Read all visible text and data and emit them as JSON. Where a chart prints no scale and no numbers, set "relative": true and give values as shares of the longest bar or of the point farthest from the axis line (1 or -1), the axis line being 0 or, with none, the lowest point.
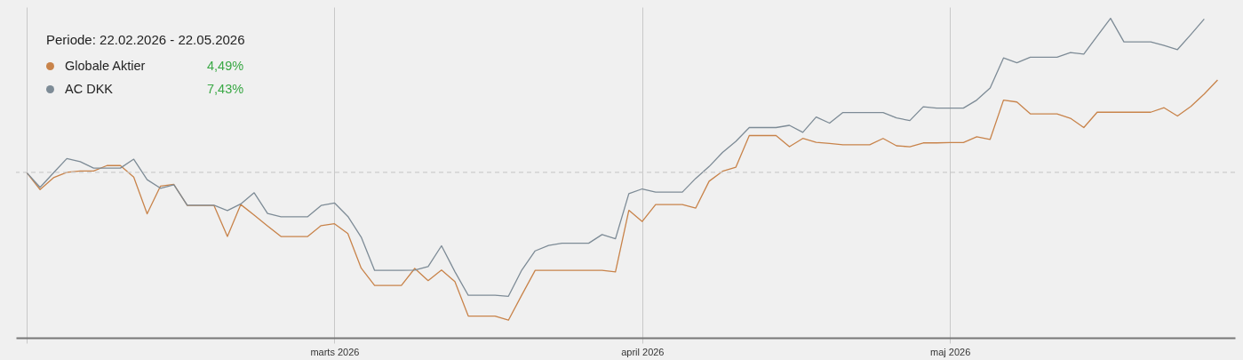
{
  "chart_data": {
    "type": "line",
    "relative": true,
    "legend_title": "Periode: 22.02.2026 - 22.05.2026",
    "legend": "top left",
    "grid": "x",
    "line_style": "solid",
    "marker": "none",
    "categories": [
      null,
      null,
      null,
      null,
      null,
      null,
      null,
      null,
      null,
      null,
      null,
      null,
      null,
      null,
      null,
      null,
      null,
      null,
      null,
      null,
      null,
      null,
      null,
      "marts 2026",
      null,
      null,
      null,
      null,
      null,
      null,
      null,
      null,
      null,
      null,
      null,
      null,
      null,
      null,
      null,
      null,
      null,
      null,
      null,
      null,
      null,
      null,
      "april 2026",
      null,
      null,
      null,
      null,
      null,
      null,
      null,
      null,
      null,
      null,
      null,
      null,
      null,
      null,
      null,
      null,
      null,
      null,
      null,
      null,
      null,
      null,
      "maj 2026",
      null,
      null,
      null,
      null,
      null,
      null,
      null,
      null,
      null,
      null,
      null,
      null,
      null,
      null,
      null,
      null,
      null,
      null,
      null,
      null
    ],
    "annotations": [
      "4,49%",
      "7,43%"
    ],
    "ref_lines": [
      {
        "axis": "y",
        "value": 0.518,
        "label": null,
        "color": "#cccccc",
        "line_style": "dashed"
      }
    ],
    "series": [
      {
        "name": "Globale Aktier",
        "color": "#c8834a",
        "values": [
          0.517,
          0.464,
          0.501,
          0.518,
          0.522,
          0.522,
          0.539,
          0.539,
          0.503,
          0.388,
          0.475,
          0.48,
          0.414,
          0.414,
          0.414,
          0.317,
          0.417,
          0.384,
          0.35,
          0.317,
          0.317,
          0.317,
          0.351,
          0.357,
          0.326,
          0.218,
          0.164,
          0.164,
          0.164,
          0.217,
          0.179,
          0.212,
          0.176,
          0.068,
          0.068,
          0.068,
          0.055,
          0.134,
          0.211,
          0.211,
          0.211,
          0.211,
          0.211,
          0.211,
          0.206,
          0.399,
          0.364,
          0.417,
          0.417,
          0.417,
          0.406,
          0.49,
          0.521,
          0.534,
          0.633,
          0.633,
          0.633,
          0.598,
          0.624,
          0.612,
          0.608,
          0.604,
          0.604,
          0.604,
          0.624,
          0.601,
          0.598,
          0.61,
          0.61,
          0.611,
          0.611,
          0.629,
          0.621,
          0.744,
          0.738,
          0.701,
          0.701,
          0.701,
          0.687,
          0.658,
          0.706,
          0.706,
          0.706,
          0.706,
          0.706,
          0.72,
          0.694,
          0.724,
          0.763,
          0.807
        ]
      },
      {
        "name": "AC DKK",
        "color": "#7d8b96",
        "values": [
          0.517,
          0.471,
          0.516,
          0.561,
          0.551,
          0.531,
          0.531,
          0.531,
          0.559,
          0.495,
          0.468,
          0.479,
          0.415,
          0.415,
          0.415,
          0.398,
          0.419,
          0.454,
          0.389,
          0.379,
          0.379,
          0.379,
          0.414,
          0.422,
          0.38,
          0.315,
          0.211,
          0.211,
          0.211,
          0.212,
          0.223,
          0.288,
          0.207,
          0.133,
          0.133,
          0.133,
          0.13,
          0.212,
          0.272,
          0.289,
          0.296,
          0.296,
          0.296,
          0.323,
          0.31,
          0.451,
          0.466,
          0.456,
          0.456,
          0.456,
          0.499,
          0.536,
          0.58,
          0.615,
          0.658,
          0.658,
          0.658,
          0.665,
          0.643,
          0.691,
          0.672,
          0.705,
          0.705,
          0.705,
          0.705,
          0.688,
          0.68,
          0.723,
          0.719,
          0.719,
          0.719,
          0.744,
          0.782,
          0.876,
          0.861,
          0.878,
          0.878,
          0.878,
          0.893,
          0.888,
          0.944,
          1,
          0.926,
          0.926,
          0.926,
          0.915,
          0.902,
          0.949,
          0.998,
          null
        ]
      }
    ]
  }
}
